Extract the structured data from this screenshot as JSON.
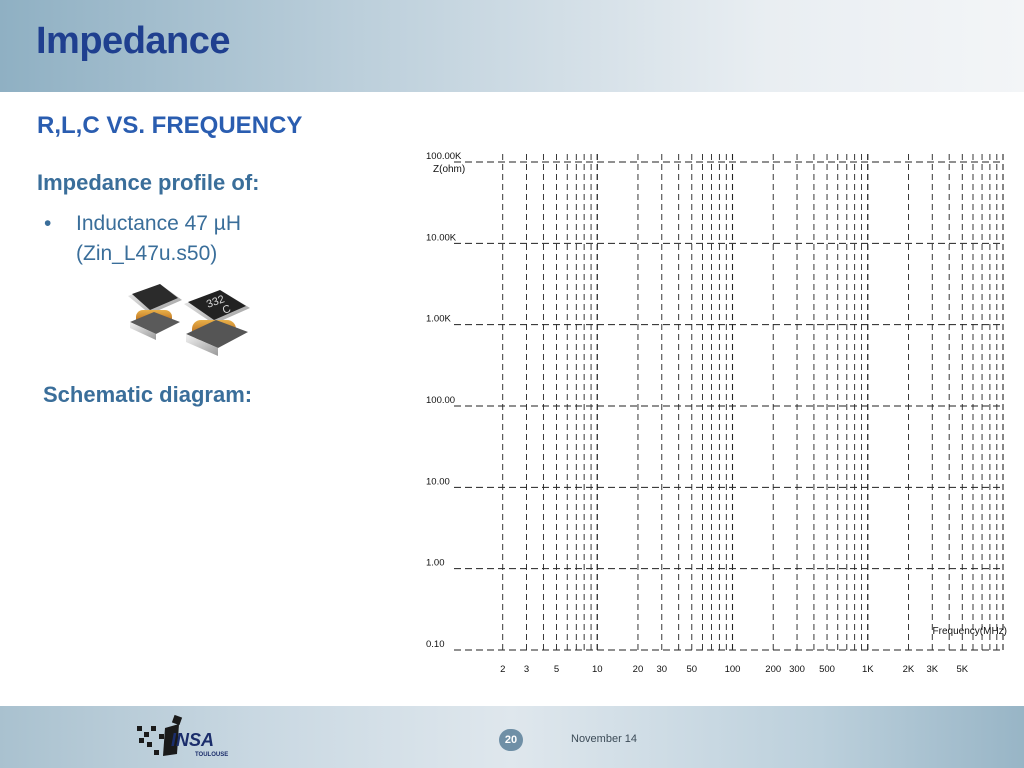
{
  "slide": {
    "title": "Impedance",
    "subtitle": "R,L,C VS. FREQUENCY",
    "profile_heading": "Impedance profile of:",
    "bullet": {
      "marker": "•",
      "line1": "Inductance 47 µH",
      "line2": "(Zin_L47u.s50)"
    },
    "schematic_heading": "Schematic diagram:"
  },
  "photo": {
    "component_marking_line1": "332",
    "component_marking_line2": "C"
  },
  "footer": {
    "slide_number": "20",
    "date": "November 14",
    "logo_text": "INSA",
    "logo_subtext": "TOULOUSE"
  },
  "colors": {
    "title": "#1f3f8f",
    "subtitle": "#2a5db0",
    "body_text": "#3a6e9a",
    "grid": "#222222"
  },
  "chart_data": {
    "type": "line",
    "ylabel": "Z(ohm)",
    "xlabel": "Frequency(MHz)",
    "x_scale": "log",
    "y_scale": "log",
    "xlim": [
      1,
      10000
    ],
    "ylim": [
      0.1,
      100000
    ],
    "y_ticks": [
      {
        "value": 100000,
        "label": "100.00K"
      },
      {
        "value": 10000,
        "label": "10.00K"
      },
      {
        "value": 1000,
        "label": "1.00K"
      },
      {
        "value": 100,
        "label": "100.00"
      },
      {
        "value": 10,
        "label": "10.00"
      },
      {
        "value": 1,
        "label": "1.00"
      },
      {
        "value": 0.1,
        "label": "0.10"
      }
    ],
    "x_ticks": [
      {
        "value": 2,
        "label": "2"
      },
      {
        "value": 3,
        "label": "3"
      },
      {
        "value": 5,
        "label": "5"
      },
      {
        "value": 10,
        "label": "10"
      },
      {
        "value": 20,
        "label": "20"
      },
      {
        "value": 30,
        "label": "30"
      },
      {
        "value": 50,
        "label": "50"
      },
      {
        "value": 100,
        "label": "100"
      },
      {
        "value": 200,
        "label": "200"
      },
      {
        "value": 300,
        "label": "300"
      },
      {
        "value": 500,
        "label": "500"
      },
      {
        "value": 1000,
        "label": "1K"
      },
      {
        "value": 2000,
        "label": "2K"
      },
      {
        "value": 3000,
        "label": "3K"
      },
      {
        "value": 5000,
        "label": "5K"
      }
    ],
    "grid": true,
    "series": []
  }
}
